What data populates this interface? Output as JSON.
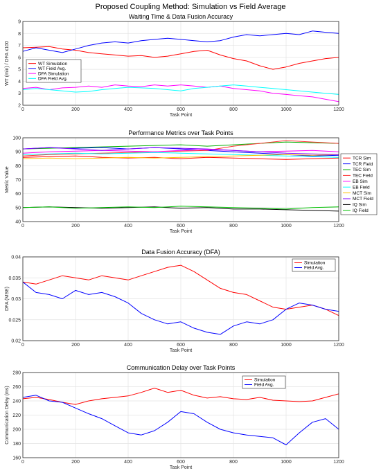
{
  "figure_title": "Proposed Coupling Method: Simulation vs Field Average",
  "chart_data": [
    {
      "type": "line",
      "title": "Waiting Time & Data Fusion Accuracy",
      "xlabel": "Task Point",
      "ylabel": "WT (min) / DFA x100",
      "xlim": [
        0,
        1200
      ],
      "ylim": [
        2,
        9
      ],
      "xticks": [
        0,
        200,
        400,
        600,
        800,
        1000,
        1200
      ],
      "yticks": [
        2,
        3,
        4,
        5,
        6,
        7,
        8,
        9
      ],
      "grid": true,
      "legend_position": "left",
      "series": [
        {
          "name": "WT Simulation",
          "color": "#ff0000",
          "x": [
            0,
            50,
            100,
            150,
            200,
            250,
            300,
            350,
            400,
            450,
            500,
            550,
            600,
            650,
            700,
            750,
            800,
            850,
            900,
            950,
            1000,
            1050,
            1100,
            1150,
            1200
          ],
          "values": [
            6.8,
            6.85,
            6.9,
            6.7,
            6.6,
            6.4,
            6.3,
            6.2,
            6.1,
            6.15,
            6.0,
            6.1,
            6.3,
            6.5,
            6.6,
            6.2,
            5.9,
            5.7,
            5.3,
            5.0,
            5.2,
            5.5,
            5.7,
            5.9,
            6.0
          ]
        },
        {
          "name": "WT Field Avg.",
          "color": "#0000ff",
          "x": [
            0,
            50,
            100,
            150,
            200,
            250,
            300,
            350,
            400,
            450,
            500,
            550,
            600,
            650,
            700,
            750,
            800,
            850,
            900,
            950,
            1000,
            1050,
            1100,
            1150,
            1200
          ],
          "values": [
            6.5,
            6.8,
            6.6,
            6.4,
            6.7,
            7.0,
            7.2,
            7.3,
            7.2,
            7.4,
            7.5,
            7.6,
            7.5,
            7.4,
            7.3,
            7.4,
            7.7,
            7.9,
            7.8,
            7.9,
            8.0,
            7.9,
            8.2,
            8.1,
            8.0
          ]
        },
        {
          "name": "DFA Simulation",
          "color": "#ff00ff",
          "x": [
            0,
            50,
            100,
            150,
            200,
            250,
            300,
            350,
            400,
            450,
            500,
            550,
            600,
            650,
            700,
            750,
            800,
            850,
            900,
            950,
            1000,
            1050,
            1100,
            1150,
            1200
          ],
          "values": [
            3.4,
            3.5,
            3.3,
            3.45,
            3.5,
            3.6,
            3.5,
            3.7,
            3.6,
            3.55,
            3.7,
            3.6,
            3.7,
            3.6,
            3.5,
            3.6,
            3.4,
            3.3,
            3.2,
            3.0,
            2.9,
            2.8,
            2.7,
            2.5,
            2.3
          ]
        },
        {
          "name": "DFA Field Avg.",
          "color": "#00ffff",
          "x": [
            0,
            50,
            100,
            150,
            200,
            250,
            300,
            350,
            400,
            450,
            500,
            550,
            600,
            650,
            700,
            750,
            800,
            850,
            900,
            950,
            1000,
            1050,
            1100,
            1150,
            1200
          ],
          "values": [
            3.3,
            3.4,
            3.3,
            3.2,
            3.1,
            3.15,
            3.3,
            3.4,
            3.5,
            3.45,
            3.4,
            3.3,
            3.2,
            3.4,
            3.5,
            3.6,
            3.7,
            3.6,
            3.5,
            3.4,
            3.3,
            3.2,
            3.1,
            3.0,
            2.9
          ]
        }
      ]
    },
    {
      "type": "line",
      "title": "Performance Metrics over Task Points",
      "xlabel": "Task Point",
      "ylabel": "Metric Value",
      "xlim": [
        0,
        1200
      ],
      "ylim": [
        40,
        100
      ],
      "xticks": [
        0,
        200,
        400,
        600,
        800,
        1000,
        1200
      ],
      "yticks": [
        40,
        50,
        60,
        70,
        80,
        90,
        100
      ],
      "grid": true,
      "legend_position": "right",
      "series": [
        {
          "name": "TCR Sim",
          "color": "#ff0000",
          "x": [
            0,
            100,
            200,
            300,
            400,
            500,
            600,
            700,
            800,
            900,
            1000,
            1100,
            1200
          ],
          "values": [
            86,
            86.5,
            87,
            86,
            85.5,
            86,
            85,
            86,
            85.5,
            85,
            84.5,
            85,
            85.5
          ]
        },
        {
          "name": "TCR Field",
          "color": "#0000ff",
          "x": [
            0,
            100,
            200,
            300,
            400,
            500,
            600,
            700,
            800,
            900,
            1000,
            1100,
            1200
          ],
          "values": [
            92,
            93,
            92.5,
            93,
            92,
            93,
            92,
            91,
            90,
            89,
            88,
            87,
            87.5
          ]
        },
        {
          "name": "TEC Sim",
          "color": "#00b000",
          "x": [
            0,
            100,
            200,
            300,
            400,
            500,
            600,
            700,
            800,
            900,
            1000,
            1100,
            1200
          ],
          "values": [
            92,
            92.5,
            93,
            93.5,
            94,
            94.5,
            95,
            94,
            95,
            96,
            97,
            96.5,
            96
          ]
        },
        {
          "name": "TEC Field",
          "color": "#ff3030",
          "x": [
            0,
            100,
            200,
            300,
            400,
            500,
            600,
            700,
            800,
            900,
            1000,
            1100,
            1200
          ],
          "values": [
            87,
            88,
            88.5,
            89,
            89.5,
            90,
            90.5,
            91,
            94,
            96,
            98,
            97,
            96
          ]
        },
        {
          "name": "EB Sim",
          "color": "#ff00ff",
          "x": [
            0,
            100,
            200,
            300,
            400,
            500,
            600,
            700,
            800,
            900,
            1000,
            1100,
            1200
          ],
          "values": [
            89,
            90,
            90.5,
            91,
            90.5,
            90,
            91,
            91.5,
            91,
            90,
            90.5,
            91,
            90
          ]
        },
        {
          "name": "EB Field",
          "color": "#00ffff",
          "x": [
            0,
            100,
            200,
            300,
            400,
            500,
            600,
            700,
            800,
            900,
            1000,
            1100,
            1200
          ],
          "values": [
            88,
            88.5,
            89,
            88.5,
            89,
            89.5,
            89,
            88.5,
            88,
            87.5,
            87,
            86.5,
            86
          ]
        },
        {
          "name": "MCT Sim",
          "color": "#ffc000",
          "x": [
            0,
            100,
            200,
            300,
            400,
            500,
            600,
            700,
            800,
            900,
            1000,
            1100,
            1200
          ],
          "values": [
            85,
            85.5,
            85,
            85.5,
            86,
            85.5,
            86,
            86.5,
            87,
            87.5,
            88,
            87.5,
            88
          ]
        },
        {
          "name": "MCT Field",
          "color": "#8000ff",
          "x": [
            0,
            100,
            200,
            300,
            400,
            500,
            600,
            700,
            800,
            900,
            1000,
            1100,
            1200
          ],
          "values": [
            92,
            93,
            92,
            91,
            92,
            93,
            92.5,
            92,
            91,
            90,
            89,
            88.5,
            88
          ]
        },
        {
          "name": "IQ Sim",
          "color": "#000000",
          "x": [
            0,
            100,
            200,
            300,
            400,
            500,
            600,
            700,
            800,
            900,
            1000,
            1100,
            1200
          ],
          "values": [
            50,
            50.5,
            50,
            49.5,
            50,
            50.5,
            49.5,
            50,
            49,
            49,
            48.5,
            48,
            47.5
          ]
        },
        {
          "name": "IQ Field",
          "color": "#00c000",
          "x": [
            0,
            100,
            200,
            300,
            400,
            500,
            600,
            700,
            800,
            900,
            1000,
            1100,
            1200
          ],
          "values": [
            50,
            50.5,
            49.5,
            50,
            50.5,
            50,
            51,
            50.5,
            50,
            49.5,
            49,
            50,
            50.5
          ]
        }
      ]
    },
    {
      "type": "line",
      "title": "Data Fusion Accuracy (DFA)",
      "xlabel": "Task Point",
      "ylabel": "DFA (MSE)",
      "xlim": [
        0,
        1200
      ],
      "ylim": [
        0.02,
        0.04
      ],
      "xticks": [
        0,
        200,
        400,
        600,
        800,
        1000,
        1200
      ],
      "yticks": [
        0.02,
        0.025,
        0.03,
        0.035,
        0.04
      ],
      "grid": true,
      "legend_position": "top-right",
      "series": [
        {
          "name": "Simulation",
          "color": "#ff0000",
          "x": [
            0,
            50,
            100,
            150,
            200,
            250,
            300,
            350,
            400,
            450,
            500,
            550,
            600,
            650,
            700,
            750,
            800,
            850,
            900,
            950,
            1000,
            1050,
            1100,
            1150,
            1200
          ],
          "values": [
            0.034,
            0.0335,
            0.0345,
            0.0355,
            0.035,
            0.0345,
            0.0355,
            0.035,
            0.0345,
            0.0355,
            0.0365,
            0.0375,
            0.038,
            0.0365,
            0.0345,
            0.0325,
            0.0315,
            0.031,
            0.0295,
            0.028,
            0.0275,
            0.028,
            0.0285,
            0.0275,
            0.026
          ]
        },
        {
          "name": "Field Avg.",
          "color": "#0000ff",
          "x": [
            0,
            50,
            100,
            150,
            200,
            250,
            300,
            350,
            400,
            450,
            500,
            550,
            600,
            650,
            700,
            750,
            800,
            850,
            900,
            950,
            1000,
            1050,
            1100,
            1150,
            1200
          ],
          "values": [
            0.034,
            0.0315,
            0.031,
            0.03,
            0.032,
            0.031,
            0.0315,
            0.0305,
            0.029,
            0.0265,
            0.025,
            0.024,
            0.0245,
            0.023,
            0.022,
            0.0215,
            0.0235,
            0.0245,
            0.024,
            0.025,
            0.0275,
            0.029,
            0.0285,
            0.0275,
            0.027
          ]
        }
      ]
    },
    {
      "type": "line",
      "title": "Communication Delay over Task Points",
      "xlabel": "Task Point",
      "ylabel": "Communication Delay (ms)",
      "xlim": [
        0,
        1200
      ],
      "ylim": [
        160,
        280
      ],
      "xticks": [
        0,
        200,
        400,
        600,
        800,
        1000,
        1200
      ],
      "yticks": [
        160,
        180,
        200,
        220,
        240,
        260,
        280
      ],
      "grid": true,
      "legend_position": "top-right",
      "series": [
        {
          "name": "Simulation",
          "color": "#ff0000",
          "x": [
            0,
            50,
            100,
            150,
            200,
            250,
            300,
            350,
            400,
            450,
            500,
            550,
            600,
            650,
            700,
            750,
            800,
            850,
            900,
            950,
            1000,
            1050,
            1100,
            1150,
            1200
          ],
          "values": [
            243,
            245,
            242,
            238,
            235,
            240,
            243,
            245,
            247,
            252,
            258,
            252,
            255,
            248,
            244,
            246,
            243,
            242,
            245,
            241,
            240,
            239,
            240,
            245,
            250
          ]
        },
        {
          "name": "Field Avg.",
          "color": "#0000ff",
          "x": [
            0,
            50,
            100,
            150,
            200,
            250,
            300,
            350,
            400,
            450,
            500,
            550,
            600,
            650,
            700,
            750,
            800,
            850,
            900,
            950,
            1000,
            1050,
            1100,
            1150,
            1200
          ],
          "values": [
            245,
            248,
            240,
            238,
            230,
            222,
            215,
            205,
            195,
            192,
            198,
            210,
            225,
            222,
            210,
            200,
            195,
            192,
            190,
            188,
            178,
            195,
            210,
            215,
            200
          ]
        }
      ]
    }
  ]
}
